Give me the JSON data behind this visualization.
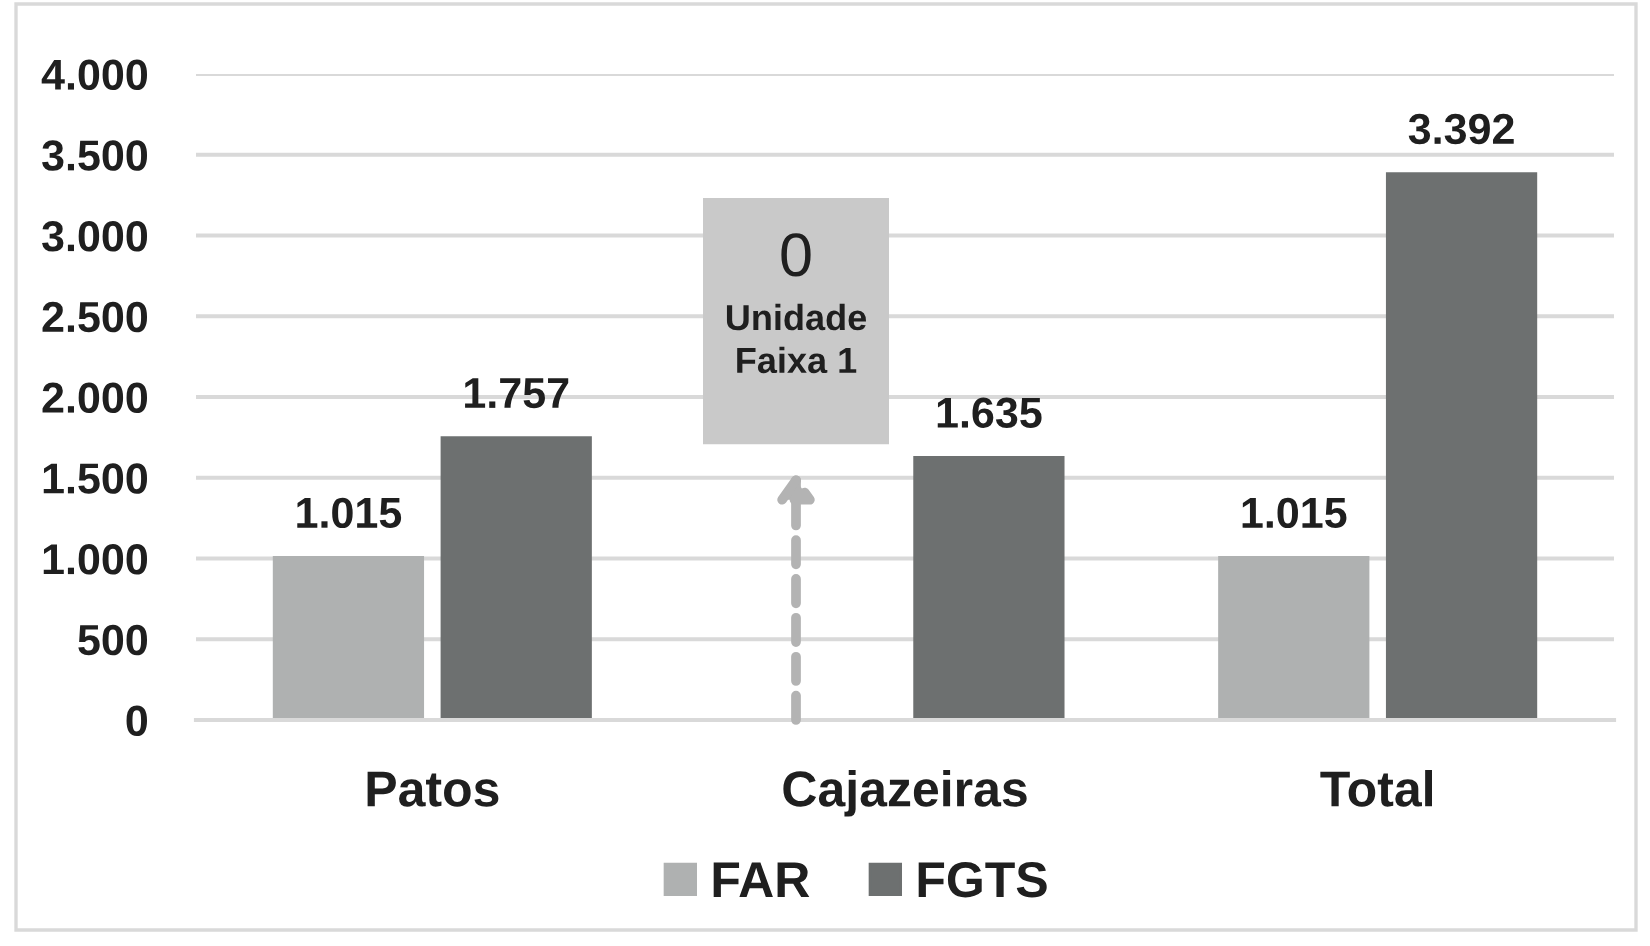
{
  "chart_data": {
    "type": "bar",
    "categories": [
      "Patos",
      "Cajazeiras",
      "Total"
    ],
    "series": [
      {
        "name": "FAR",
        "color": "#afb1b1",
        "values": [
          1015,
          0,
          1015
        ],
        "value_labels": [
          "1.015",
          null,
          "1.015"
        ]
      },
      {
        "name": "FGTS",
        "color": "#6d7070",
        "values": [
          1757,
          1635,
          3392
        ],
        "value_labels": [
          "1.757",
          "1.635",
          "3.392"
        ]
      }
    ],
    "ylim": [
      0,
      4000
    ],
    "yticks": [
      0,
      500,
      {
        "value": 1000,
        "label": "1.000"
      },
      {
        "value": 1500,
        "label": "1.500"
      },
      {
        "value": 2000,
        "label": "2.000"
      },
      {
        "value": 2500,
        "label": "2.500"
      },
      {
        "value": 3000,
        "label": "3.000"
      },
      {
        "value": 3500,
        "label": "3.500"
      },
      {
        "value": 4000,
        "label": "4.000"
      }
    ],
    "grid": "y",
    "legend": "bottom",
    "annotations": [
      "0\nUnidade\nFaixa 1"
    ]
  }
}
